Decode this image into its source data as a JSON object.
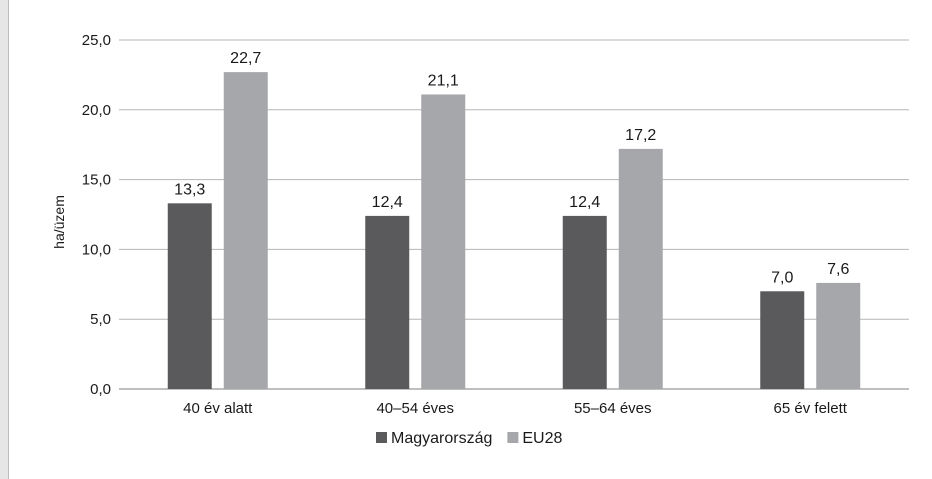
{
  "chart_data": {
    "type": "bar",
    "categories": [
      "40 év alatt",
      "40–54 éves",
      "55–64 éves",
      "65 év felett"
    ],
    "series": [
      {
        "name": "Magyarország",
        "values": [
          13.3,
          12.4,
          12.4,
          7.0
        ],
        "labels": [
          "13,3",
          "12,4",
          "12,4",
          "7,0"
        ],
        "color": "#5a5a5c"
      },
      {
        "name": "EU28",
        "values": [
          22.7,
          21.1,
          17.2,
          7.6
        ],
        "labels": [
          "22,7",
          "21,1",
          "17,2",
          "7,6"
        ],
        "color": "#a6a7aa"
      }
    ],
    "ylabel": "ha/üzem",
    "xlabel": "",
    "ylim": [
      0,
      25
    ],
    "yticks": [
      0,
      5,
      10,
      15,
      20,
      25
    ],
    "ytick_labels": [
      "0,0",
      "5,0",
      "10,0",
      "15,0",
      "20,0",
      "25,0"
    ],
    "grid": true,
    "legend_position": "bottom"
  }
}
